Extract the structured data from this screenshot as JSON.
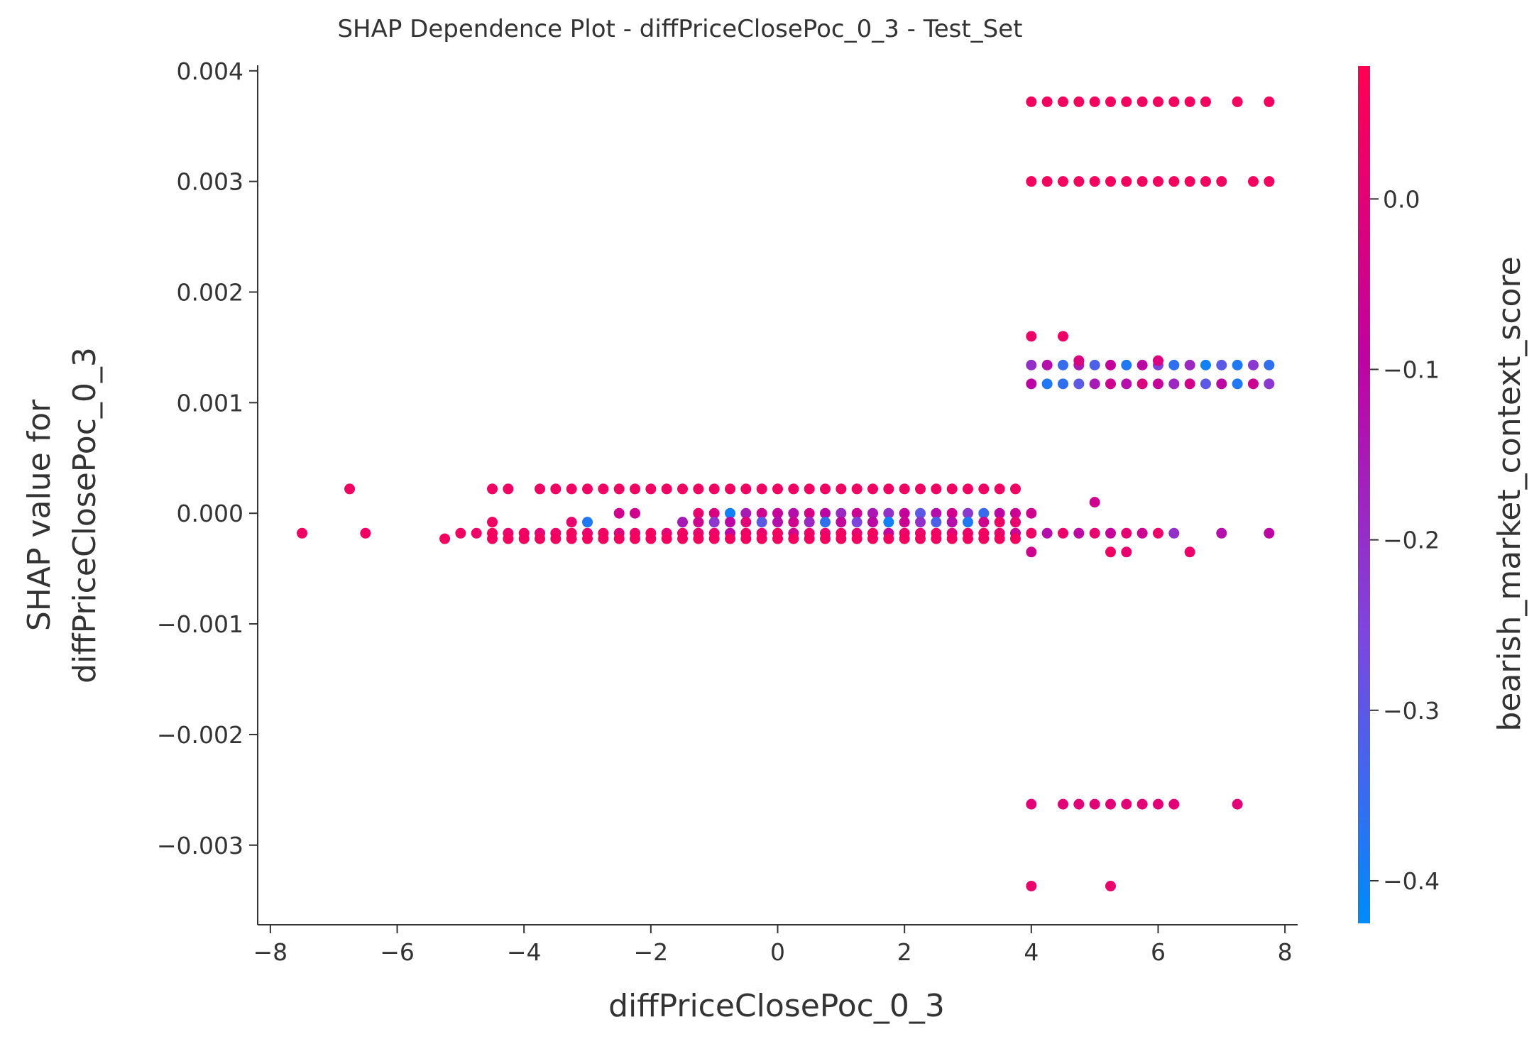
{
  "chart_data": {
    "type": "scatter",
    "title": "SHAP Dependence Plot - diffPriceClosePoc_0_3 - Test_Set",
    "xlabel": "diffPriceClosePoc_0_3",
    "ylabel_line1": "SHAP value for",
    "ylabel_line2": "diffPriceClosePoc_0_3",
    "colorbar_label": "bearish_market_context_score",
    "xlim": [
      -8.2,
      8.2
    ],
    "ylim": [
      -0.00372,
      0.00405
    ],
    "x_ticks": [
      -8,
      -6,
      -4,
      -2,
      0,
      2,
      4,
      6,
      8
    ],
    "x_tick_labels": [
      "−8",
      "−6",
      "−4",
      "−2",
      "0",
      "2",
      "4",
      "6",
      "8"
    ],
    "y_ticks": [
      -0.003,
      -0.002,
      -0.001,
      0.0,
      0.001,
      0.002,
      0.003,
      0.004
    ],
    "y_tick_labels": [
      "−0.003",
      "−0.002",
      "−0.001",
      "0.000",
      "0.001",
      "0.002",
      "0.003",
      "0.004"
    ],
    "color_range": [
      -0.425,
      0.078
    ],
    "color_ticks": [
      0.0,
      -0.1,
      -0.2,
      -0.3,
      -0.4
    ],
    "color_tick_labels": [
      "0.0",
      "−0.1",
      "−0.2",
      "−0.3",
      "−0.4"
    ],
    "colormap": [
      "#008afb",
      "#7b48dd",
      "#c0029f",
      "#ff0052"
    ],
    "groups": [
      {
        "y": 0.00372,
        "x_start": 4.0,
        "x_end": 6.75,
        "x_step": 0.25,
        "c": 0.05,
        "extra_x": [
          7.25,
          7.75
        ]
      },
      {
        "y": 0.003,
        "x_start": 4.0,
        "x_end": 7.0,
        "x_step": 0.25,
        "c": 0.05,
        "extra_x": [
          7.5,
          7.75
        ]
      },
      {
        "y": 0.00134,
        "x_start": 4.0,
        "x_end": 7.75,
        "x_step": 0.25,
        "c": -0.2,
        "c_pattern": [
          -0.2,
          -0.12,
          -0.35,
          -0.15,
          -0.32,
          -0.08,
          -0.38,
          -0.1,
          -0.25,
          -0.36,
          -0.18,
          -0.4,
          -0.3,
          -0.38,
          -0.22,
          -0.36
        ]
      },
      {
        "y": 0.00117,
        "x_start": 4.0,
        "x_end": 7.75,
        "x_step": 0.25,
        "c": -0.2,
        "c_pattern": [
          -0.1,
          -0.38,
          -0.36,
          -0.3,
          -0.15,
          -0.05,
          -0.12,
          -0.02,
          -0.08,
          -0.18,
          -0.04,
          -0.3,
          -0.1,
          -0.38,
          -0.06,
          -0.22
        ]
      },
      {
        "y": 0.00022,
        "x_start": -4.5,
        "x_end": 3.75,
        "x_step": 0.25,
        "c": 0.04,
        "skip_x": [
          -4.0
        ],
        "extra_x": [
          -6.75
        ]
      },
      {
        "y": 0.0,
        "x_start": -1.25,
        "x_end": 3.75,
        "x_step": 0.25,
        "c": -0.05,
        "c_pattern": [
          0.02,
          -0.02,
          -0.4,
          -0.15,
          -0.05,
          -0.08,
          -0.12,
          -0.03,
          -0.1,
          -0.18,
          -0.06,
          -0.14,
          -0.2,
          -0.08,
          -0.3,
          -0.12,
          -0.05,
          -0.22,
          -0.35,
          -0.1,
          -0.06
        ],
        "extra_x": [
          -2.5,
          -2.25,
          4.0
        ]
      },
      {
        "y": -8e-05,
        "x_start": -4.5,
        "x_end": 3.75,
        "x_step": 0.25,
        "c": 0.04,
        "skip_x": [
          -4.25,
          -4.0,
          -3.75,
          -3.5,
          -2.75,
          -2.5,
          -2.25,
          -2.0,
          -1.75
        ],
        "c_pattern": [
          0.04,
          0.02,
          -0.38,
          -0.15,
          -0.05,
          -0.22,
          -0.1,
          0.0,
          -0.3,
          -0.12,
          -0.05,
          -0.18,
          -0.36,
          -0.08,
          -0.25,
          -0.1,
          -0.4,
          -0.06,
          -0.2,
          -0.32,
          -0.12,
          -0.38,
          -0.05
        ],
        "extra_x": []
      },
      {
        "y": -0.00018,
        "x_start": -5.0,
        "x_end": 6.0,
        "x_step": 0.25,
        "c": 0.03,
        "c_pattern": [
          0.04,
          0.03,
          0.05,
          0.02,
          0.04,
          0.0,
          0.03,
          0.05,
          0.02,
          0.04,
          -0.02,
          0.03,
          0.05,
          0.01,
          0.04,
          0.02,
          0.03,
          -0.1,
          0.04,
          0.02,
          0.05,
          -0.05,
          0.03,
          0.02,
          0.04,
          0.01,
          0.05,
          -0.08,
          0.03,
          0.02,
          0.04,
          0.0,
          0.03,
          0.05,
          0.02,
          -0.06,
          0.04,
          -0.12,
          0.03,
          -0.1,
          0.02,
          -0.08,
          0.01,
          -0.06,
          0.03
        ],
        "extra_x": [
          -7.5,
          -6.5,
          6.25,
          7.0,
          7.75
        ],
        "extra_c": [
          0.04,
          0.04,
          -0.2,
          -0.12,
          -0.1
        ]
      },
      {
        "y": -0.00023,
        "x_start": -5.25,
        "x_end": 3.75,
        "x_step": 0.25,
        "c": 0.05,
        "skip_x": [
          -5.0,
          -4.75
        ],
        "extra_x": []
      },
      {
        "y": -0.00035,
        "x_start": 4.0,
        "x_end": 4.0,
        "x_step": 0.25,
        "c": -0.05,
        "extra_x": [
          5.25,
          5.5,
          6.5
        ],
        "extra_c": [
          0.04,
          0.02,
          0.03
        ]
      },
      {
        "y": 0.0001,
        "x_start": 5.0,
        "x_end": 5.0,
        "x_step": 0.25,
        "c": -0.05
      },
      {
        "y": 0.0016,
        "x_start": 4.0,
        "x_end": 4.0,
        "x_step": 0.25,
        "c": 0.03,
        "extra_x": [
          4.5
        ]
      },
      {
        "y": 0.00138,
        "x_start": 4.75,
        "x_end": 4.75,
        "x_step": 0.25,
        "c": -0.02,
        "extra_x": [
          6.0
        ]
      },
      {
        "y": -0.00263,
        "x_start": 4.0,
        "x_end": 6.25,
        "x_step": 0.25,
        "c": 0.0,
        "skip_x": [
          4.25
        ],
        "extra_x": [
          7.25
        ]
      },
      {
        "y": -0.00337,
        "x_start": 4.0,
        "x_end": 4.0,
        "x_step": 0.25,
        "c": 0.02,
        "extra_x": [
          5.25
        ]
      }
    ]
  }
}
